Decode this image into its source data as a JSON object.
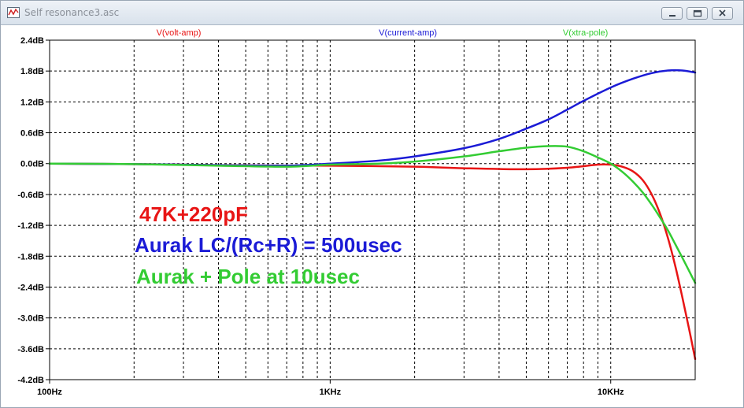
{
  "window": {
    "title": "Self resonance3.asc"
  },
  "colors": {
    "volt_amp": "#e81515",
    "current_amp": "#1b1bd6",
    "xtra_pole": "#33cc33",
    "grid": "#000000",
    "axis_text": "#000000"
  },
  "chart_data": {
    "type": "line",
    "xscale": "log",
    "xlim": [
      100,
      20000
    ],
    "ylim": [
      -4.2,
      2.4
    ],
    "grid": true,
    "legend_position": "top",
    "x_ticks": [
      {
        "v": 100,
        "label": "100Hz"
      },
      {
        "v": 1000,
        "label": "1KHz"
      },
      {
        "v": 10000,
        "label": "10KHz"
      }
    ],
    "y_ticks": [
      {
        "v": 2.4,
        "label": "2.4dB"
      },
      {
        "v": 1.8,
        "label": "1.8dB"
      },
      {
        "v": 1.2,
        "label": "1.2dB"
      },
      {
        "v": 0.6,
        "label": "0.6dB"
      },
      {
        "v": 0.0,
        "label": "0.0dB"
      },
      {
        "v": -0.6,
        "label": "-0.6dB"
      },
      {
        "v": -1.2,
        "label": "-1.2dB"
      },
      {
        "v": -1.8,
        "label": "-1.8dB"
      },
      {
        "v": -2.4,
        "label": "-2.4dB"
      },
      {
        "v": -3.0,
        "label": "-3.0dB"
      },
      {
        "v": -3.6,
        "label": "-3.6dB"
      },
      {
        "v": -4.2,
        "label": "-4.2dB"
      }
    ],
    "series": [
      {
        "name": "V(volt-amp)",
        "color_key": "volt_amp",
        "x": [
          100,
          200,
          400,
          700,
          1000,
          2000,
          3000,
          5000,
          7000,
          9000,
          10000,
          11000,
          12000,
          13000,
          14000,
          15000,
          16000,
          17000,
          18000,
          19000,
          20000
        ],
        "y": [
          0.0,
          -0.01,
          -0.03,
          -0.04,
          -0.04,
          -0.06,
          -0.09,
          -0.11,
          -0.08,
          -0.02,
          -0.02,
          -0.06,
          -0.15,
          -0.32,
          -0.6,
          -0.98,
          -1.45,
          -2.0,
          -2.6,
          -3.2,
          -3.8
        ]
      },
      {
        "name": "V(current-amp)",
        "color_key": "current_amp",
        "x": [
          100,
          200,
          400,
          700,
          1000,
          1500,
          2000,
          3000,
          4000,
          5000,
          6000,
          7000,
          8000,
          10000,
          12000,
          14000,
          16000,
          18000,
          20000
        ],
        "y": [
          0.0,
          -0.01,
          -0.03,
          -0.04,
          0.0,
          0.06,
          0.14,
          0.3,
          0.48,
          0.68,
          0.86,
          1.05,
          1.22,
          1.48,
          1.65,
          1.76,
          1.81,
          1.81,
          1.77
        ]
      },
      {
        "name": "V(xtra-pole)",
        "color_key": "xtra_pole",
        "x": [
          100,
          200,
          400,
          700,
          1000,
          1500,
          2000,
          3000,
          4000,
          5000,
          6000,
          7000,
          8000,
          9000,
          10000,
          11000,
          12000,
          13000,
          14000,
          15000,
          16000,
          17000,
          18000,
          19000,
          20000
        ],
        "y": [
          0.0,
          -0.01,
          -0.04,
          -0.06,
          -0.02,
          0.0,
          0.04,
          0.14,
          0.24,
          0.31,
          0.34,
          0.33,
          0.24,
          0.12,
          0.0,
          -0.16,
          -0.35,
          -0.56,
          -0.8,
          -1.05,
          -1.3,
          -1.57,
          -1.83,
          -2.08,
          -2.32
        ]
      }
    ],
    "annotations": [
      {
        "text": "47K+220pF",
        "color_key": "volt_amp"
      },
      {
        "text": "Aurak LC/(Rc+R) = 500usec",
        "color_key": "current_amp"
      },
      {
        "text": "Aurak + Pole at 10usec",
        "color_key": "xtra_pole"
      }
    ]
  }
}
